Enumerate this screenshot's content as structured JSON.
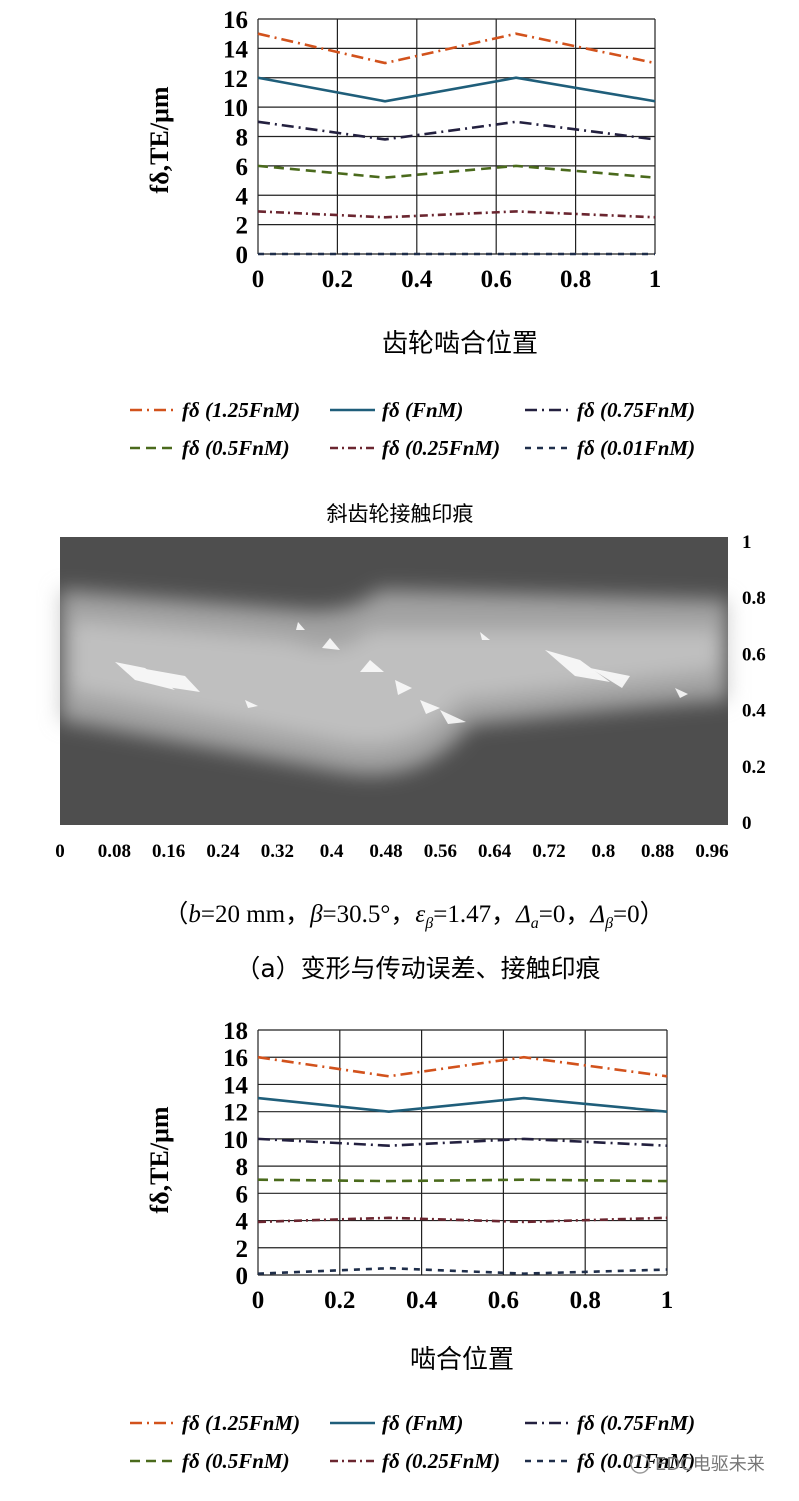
{
  "chart_data": [
    {
      "type": "line",
      "ylabel": "fδ,TE/μm",
      "xlabel": "齿轮啮合位置",
      "xlim": [
        0,
        1
      ],
      "ylim": [
        0,
        16
      ],
      "x_ticks": [
        "0",
        "0.2",
        "0.4",
        "0.6",
        "0.8",
        "1"
      ],
      "y_ticks": [
        "0",
        "2",
        "4",
        "6",
        "8",
        "10",
        "12",
        "14",
        "16"
      ],
      "grid": true,
      "legend_position": "bottom",
      "x": [
        0,
        0.32,
        0.65,
        1
      ],
      "series": [
        {
          "name": "fδ (1.25FnM)",
          "values": [
            15,
            13,
            15,
            13
          ],
          "color": "#d2521c",
          "dash": "12,5,2,5"
        },
        {
          "name": "fδ (FnM)",
          "values": [
            12,
            10.4,
            12,
            10.4
          ],
          "color": "#1f5e7a",
          "dash": ""
        },
        {
          "name": "fδ (0.75FnM)",
          "values": [
            9,
            7.8,
            9,
            7.8
          ],
          "color": "#23203f",
          "dash": "12,5,2,5"
        },
        {
          "name": "fδ (0.5FnM)",
          "values": [
            6,
            5.2,
            6,
            5.2
          ],
          "color": "#4a6a1c",
          "dash": "10,6"
        },
        {
          "name": "fδ (0.25FnM)",
          "values": [
            2.9,
            2.5,
            2.9,
            2.5
          ],
          "color": "#6b2630",
          "dash": "8,4,2,4"
        },
        {
          "name": "fδ (0.01FnM)",
          "values": [
            0,
            0,
            0,
            0
          ],
          "color": "#1f2e4a",
          "dash": "6,6"
        }
      ]
    },
    {
      "type": "heatmap",
      "title": "斜齿轮接触印痕",
      "x_ticks": [
        "0",
        "0.08",
        "0.16",
        "0.24",
        "0.32",
        "0.4",
        "0.48",
        "0.56",
        "0.64",
        "0.72",
        "0.8",
        "0.88",
        "0.96"
      ],
      "y_ticks": [
        "1",
        "0.8",
        "0.6",
        "0.4",
        "0.2",
        "0"
      ],
      "xlim": [
        0,
        1
      ],
      "ylim": [
        0,
        1
      ]
    },
    {
      "type": "line",
      "ylabel": "fδ,TE/μm",
      "xlabel": "啮合位置",
      "xlim": [
        0,
        1
      ],
      "ylim": [
        0,
        18
      ],
      "x_ticks": [
        "0",
        "0.2",
        "0.4",
        "0.6",
        "0.8",
        "1"
      ],
      "y_ticks": [
        "0",
        "2",
        "4",
        "6",
        "8",
        "10",
        "12",
        "14",
        "16",
        "18"
      ],
      "grid": true,
      "legend_position": "bottom",
      "x": [
        0,
        0.32,
        0.65,
        1
      ],
      "series": [
        {
          "name": "fδ (1.25FnM)",
          "values": [
            16,
            14.6,
            16,
            14.6
          ],
          "color": "#d2521c",
          "dash": "12,5,2,5"
        },
        {
          "name": "fδ (FnM)",
          "values": [
            13,
            12,
            13,
            12
          ],
          "color": "#1f5e7a",
          "dash": ""
        },
        {
          "name": "fδ (0.75FnM)",
          "values": [
            10,
            9.5,
            10,
            9.5
          ],
          "color": "#23203f",
          "dash": "12,5,2,5"
        },
        {
          "name": "fδ (0.5FnM)",
          "values": [
            7,
            6.9,
            7,
            6.9
          ],
          "color": "#4a6a1c",
          "dash": "10,6"
        },
        {
          "name": "fδ (0.25FnM)",
          "values": [
            3.9,
            4.2,
            3.9,
            4.2
          ],
          "color": "#6b2630",
          "dash": "8,4,2,4"
        },
        {
          "name": "fδ (0.01FnM)",
          "values": [
            0.1,
            0.5,
            0.1,
            0.4
          ],
          "color": "#1f2e4a",
          "dash": "6,6"
        }
      ]
    }
  ],
  "captions": {
    "params": "（b=20 mm，β=30.5°，εβ=1.47，Δa=0，Δβ=0）",
    "sub_a": "（a）变形与传动误差、接触印痕"
  },
  "watermark": "EDC电驱未来"
}
